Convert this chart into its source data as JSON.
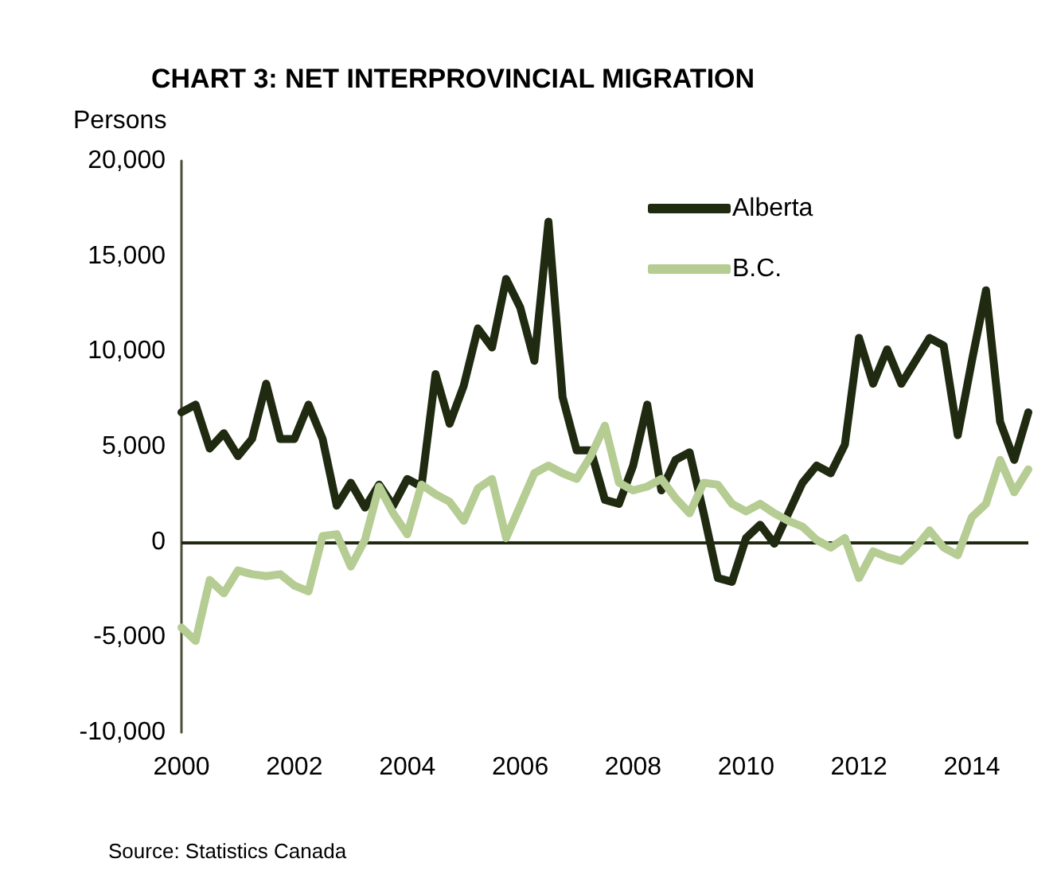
{
  "chart_data": {
    "type": "line",
    "title": "CHART 3: NET INTERPROVINCIAL MIGRATION",
    "ylabel": "Persons",
    "x": [
      2000,
      2000.25,
      2000.5,
      2000.75,
      2001,
      2001.25,
      2001.5,
      2001.75,
      2002,
      2002.25,
      2002.5,
      2002.75,
      2003,
      2003.25,
      2003.5,
      2003.75,
      2004,
      2004.25,
      2004.5,
      2004.75,
      2005,
      2005.25,
      2005.5,
      2005.75,
      2006,
      2006.25,
      2006.5,
      2006.75,
      2007,
      2007.25,
      2007.5,
      2007.75,
      2008,
      2008.25,
      2008.5,
      2008.75,
      2009,
      2009.25,
      2009.5,
      2009.75,
      2010,
      2010.25,
      2010.5,
      2010.75,
      2011,
      2011.25,
      2011.5,
      2011.75,
      2012,
      2012.25,
      2012.5,
      2012.75,
      2013,
      2013.25,
      2013.5,
      2013.75,
      2014,
      2014.25,
      2014.5,
      2014.75,
      2015
    ],
    "series": [
      {
        "name": "Alberta",
        "color": "#1f2a10",
        "values": [
          6800,
          7200,
          4900,
          5700,
          4500,
          5400,
          8300,
          5400,
          5400,
          7200,
          5400,
          1900,
          3100,
          1800,
          3000,
          1900,
          3300,
          2900,
          8800,
          6200,
          8200,
          11200,
          10200,
          13800,
          12300,
          9500,
          16800,
          7600,
          4800,
          4800,
          2200,
          2000,
          4000,
          7200,
          2700,
          4300,
          4700,
          1500,
          -1900,
          -2100,
          200,
          900,
          -100,
          1500,
          3100,
          4000,
          3600,
          5100,
          10700,
          8300,
          10100,
          8300,
          9500,
          10700,
          10300,
          5600,
          9500,
          13200,
          6300,
          4300,
          6800
        ]
      },
      {
        "name": "B.C.",
        "color": "#b5cc93",
        "values": [
          -4500,
          -5200,
          -2000,
          -2700,
          -1500,
          -1700,
          -1800,
          -1700,
          -2300,
          -2600,
          300,
          400,
          -1300,
          100,
          2900,
          1500,
          400,
          3000,
          2500,
          2100,
          1100,
          2800,
          3300,
          200,
          1900,
          3600,
          4000,
          3600,
          3300,
          4500,
          6100,
          3100,
          2700,
          2900,
          3300,
          2300,
          1500,
          3100,
          3000,
          2000,
          1600,
          2000,
          1500,
          1100,
          800,
          100,
          -300,
          200,
          -1900,
          -500,
          -800,
          -1000,
          -300,
          600,
          -300,
          -700,
          1300,
          2000,
          4300,
          2600,
          3800
        ]
      }
    ],
    "xlim": [
      2000,
      2015
    ],
    "xticks": [
      2000,
      2002,
      2004,
      2006,
      2008,
      2010,
      2012,
      2014
    ],
    "ylim": [
      -10000,
      20000
    ],
    "yticks": [
      {
        "value": -10000,
        "label": "-10,000"
      },
      {
        "value": -5000,
        "label": "-5,000"
      },
      0,
      {
        "value": 5000,
        "label": "5,000"
      },
      {
        "value": 10000,
        "label": "10,000"
      },
      {
        "value": 15000,
        "label": "15,000"
      },
      {
        "value": 20000,
        "label": "20,000"
      }
    ],
    "ref_lines": [
      {
        "axis": "y",
        "value": 0,
        "color": "#1f2a10"
      }
    ],
    "legend": "top right",
    "grid": false,
    "marker": "none",
    "line_style": "solid",
    "annotations": [
      "Source: Statistics Canada"
    ]
  }
}
